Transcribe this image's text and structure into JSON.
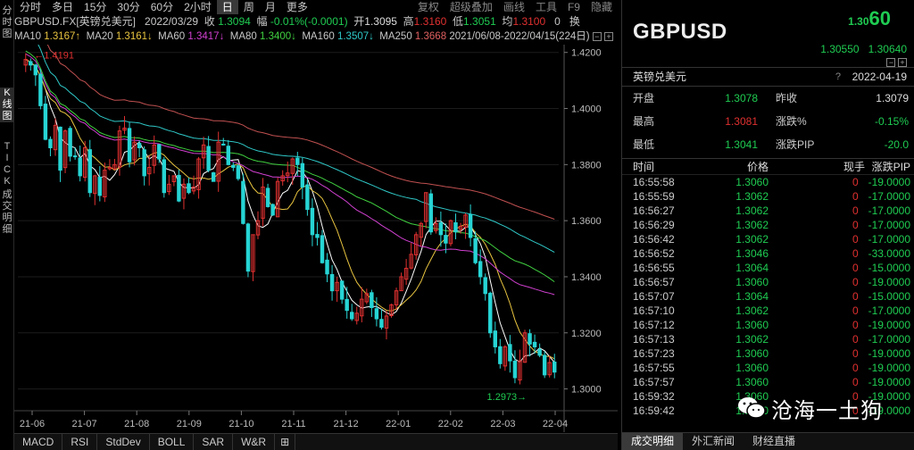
{
  "left_tabs": [
    {
      "label": "分时图",
      "name": "vtab-timeshare"
    },
    {
      "label": "K线图",
      "name": "vtab-kline"
    },
    {
      "label": "TICK",
      "name": "vtab-tick"
    },
    {
      "label": "成交明细",
      "name": "vtab-trades"
    }
  ],
  "toolbar": {
    "periods": [
      "分时",
      "多日",
      "15分",
      "30分",
      "60分",
      "2小时",
      "日",
      "周",
      "月",
      "更多"
    ],
    "active_period": "日",
    "right_items": [
      "复权",
      "超级叠加",
      "画线",
      "工具",
      "F9",
      "隐藏"
    ]
  },
  "info": {
    "symbol": "GBPUSD.FX[英镑兑美元]",
    "date": "2022/03/29",
    "close_label": "收",
    "close": "1.3094",
    "chg_label": "幅",
    "chg": "-0.01%(-0.0001)",
    "open_label": "开",
    "open": "1.3095",
    "high_label": "高",
    "high": "1.3160",
    "low_label": "低",
    "low": "1.3051",
    "avg_label": "均",
    "avg": "1.3100",
    "vol_label": "0",
    "switch_label": "换"
  },
  "ma_row": {
    "ma10": "MA10",
    "ma10_val": "1.3167↑",
    "ma20": "MA20",
    "ma20_val": "1.3161↓",
    "ma60": "MA60",
    "ma60_val": "1.3417↓",
    "ma80": "MA80",
    "ma80_val": "1.3400↓",
    "ma160": "MA160",
    "ma160_val": "1.3507↓",
    "ma250": "MA250",
    "ma250_val": "1.3668",
    "range": "2021/06/08-2022/04/15(224日)"
  },
  "colors": {
    "up": "#e03030",
    "down": "#1fcc52",
    "ma10": "#ffffff",
    "ma20": "#e8c440",
    "ma60": "#d040d0",
    "ma80": "#40d040",
    "ma160": "#30c8c8",
    "ma250": "#c05050"
  },
  "chart_data": {
    "type": "candlestick",
    "y_ticks": [
      "1.4200",
      "1.4000",
      "1.3800",
      "1.3600",
      "1.3400",
      "1.3200",
      "1.3000"
    ],
    "x_ticks": [
      "21-06",
      "21-07",
      "21-08",
      "21-09",
      "21-10",
      "21-11",
      "21-12",
      "22-01",
      "22-02",
      "22-03",
      "22-04"
    ],
    "ylim": [
      1.2935,
      1.4215
    ],
    "high_annotation": "1.4191",
    "low_annotation": "1.2973",
    "closes": [
      1.4175,
      1.4155,
      1.412,
      1.401,
      1.389,
      1.386,
      1.394,
      1.378,
      1.392,
      1.383,
      1.383,
      1.376,
      1.386,
      1.37,
      1.376,
      1.369,
      1.378,
      1.379,
      1.38,
      1.392,
      1.393,
      1.381,
      1.388,
      1.386,
      1.376,
      1.379,
      1.387,
      1.382,
      1.37,
      1.373,
      1.376,
      1.367,
      1.373,
      1.37,
      1.372,
      1.382,
      1.387,
      1.378,
      1.374,
      1.388,
      1.387,
      1.38,
      1.379,
      1.375,
      1.359,
      1.342,
      1.355,
      1.36,
      1.372,
      1.365,
      1.362,
      1.374,
      1.376,
      1.377,
      1.382,
      1.38,
      1.372,
      1.364,
      1.355,
      1.354,
      1.345,
      1.341,
      1.335,
      1.338,
      1.332,
      1.328,
      1.325,
      1.327,
      1.332,
      1.334,
      1.329,
      1.325,
      1.322,
      1.326,
      1.33,
      1.335,
      1.34,
      1.343,
      1.348,
      1.355,
      1.359,
      1.37,
      1.356,
      1.359,
      1.355,
      1.352,
      1.36,
      1.356,
      1.358,
      1.362,
      1.354,
      1.345,
      1.34,
      1.334,
      1.32,
      1.315,
      1.309,
      1.315,
      1.31,
      1.304,
      1.31,
      1.32,
      1.316,
      1.315,
      1.312,
      1.305,
      1.3094,
      1.306
    ]
  },
  "bottom_tabs": [
    "MACD",
    "RSI",
    "StdDev",
    "BOLL",
    "SAR",
    "W&R",
    "⊞"
  ],
  "panel": {
    "symbol": "GBPUSD",
    "big_price_small": "1.30",
    "big_price_large": "60",
    "bid": "1.30550",
    "ask": "1.30640",
    "name": "英镑兑美元",
    "date": "2022-04-19",
    "help": "?",
    "stats": [
      {
        "label": "开盘",
        "value": "1.3078",
        "color": "#1fcc52",
        "label2": "昨收",
        "value2": "1.3079",
        "color2": "#dddddd"
      },
      {
        "label": "最高",
        "value": "1.3081",
        "color": "#e03030",
        "label2": "涨跌%",
        "value2": "-0.15%",
        "color2": "#1fcc52"
      },
      {
        "label": "最低",
        "value": "1.3041",
        "color": "#1fcc52",
        "label2": "涨跌PIP",
        "value2": "-20.0",
        "color2": "#1fcc52"
      }
    ],
    "tick_headers": {
      "time": "时间",
      "price": "价格",
      "vol": "现手",
      "chg": "涨跌PIP"
    },
    "ticks": [
      {
        "time": "16:55:58",
        "price": "1.3060",
        "vol": "0",
        "chg": "-19.0000"
      },
      {
        "time": "16:55:59",
        "price": "1.3062",
        "vol": "0",
        "chg": "-17.0000"
      },
      {
        "time": "16:56:27",
        "price": "1.3062",
        "vol": "0",
        "chg": "-17.0000"
      },
      {
        "time": "16:56:29",
        "price": "1.3062",
        "vol": "0",
        "chg": "-17.0000"
      },
      {
        "time": "16:56:42",
        "price": "1.3062",
        "vol": "0",
        "chg": "-17.0000"
      },
      {
        "time": "16:56:52",
        "price": "1.3046",
        "vol": "0",
        "chg": "-33.0000"
      },
      {
        "time": "16:56:55",
        "price": "1.3064",
        "vol": "0",
        "chg": "-15.0000"
      },
      {
        "time": "16:56:57",
        "price": "1.3060",
        "vol": "0",
        "chg": "-19.0000"
      },
      {
        "time": "16:57:07",
        "price": "1.3064",
        "vol": "0",
        "chg": "-15.0000"
      },
      {
        "time": "16:57:10",
        "price": "1.3062",
        "vol": "0",
        "chg": "-17.0000"
      },
      {
        "time": "16:57:12",
        "price": "1.3060",
        "vol": "0",
        "chg": "-19.0000"
      },
      {
        "time": "16:57:13",
        "price": "1.3062",
        "vol": "0",
        "chg": "-17.0000"
      },
      {
        "time": "16:57:23",
        "price": "1.3060",
        "vol": "0",
        "chg": "-19.0000"
      },
      {
        "time": "16:57:55",
        "price": "1.3060",
        "vol": "0",
        "chg": "-19.0000"
      },
      {
        "time": "16:57:57",
        "price": "1.3060",
        "vol": "0",
        "chg": "-19.0000"
      },
      {
        "time": "16:59:32",
        "price": "1.3060",
        "vol": "0",
        "chg": "-19.0000"
      },
      {
        "time": "16:59:42",
        "price": "1.3060",
        "vol": "0",
        "chg": "-19.0000"
      }
    ],
    "tabs": [
      "成交明细",
      "外汇新闻",
      "财经直播"
    ],
    "active_tab": "成交明细"
  },
  "watermark": {
    "text": "沧海一土狗"
  }
}
